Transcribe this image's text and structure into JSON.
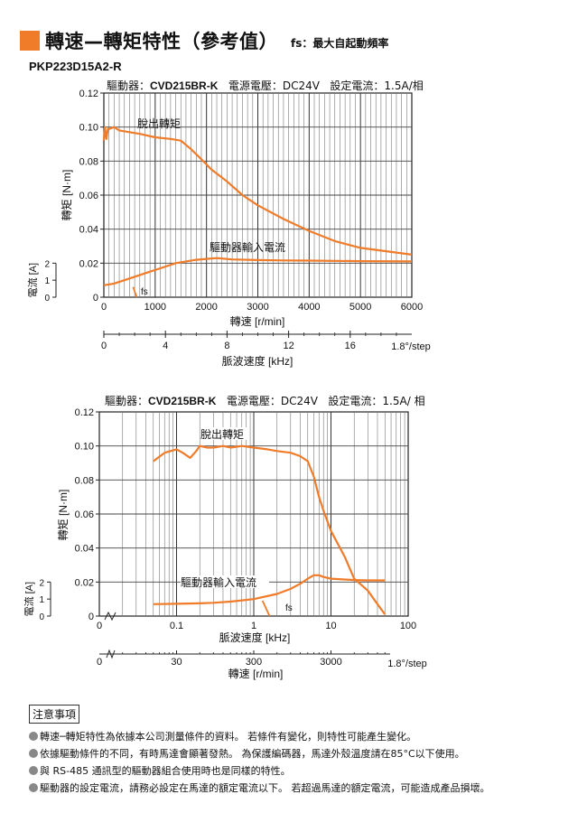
{
  "header": {
    "title": "轉速—轉矩特性（參考值）",
    "subtitle": "fs：最大自起動頻率",
    "model": "PKP223D15A2-R"
  },
  "chart_data": [
    {
      "type": "line",
      "conditions": {
        "driver_label": "驅動器：",
        "driver": "CVD215BR-K",
        "voltage_label": "電源電壓：",
        "voltage": "DC24V",
        "current_label": "設定電流：",
        "current": "1.5A/相"
      },
      "xlabel": "轉速 [r/min]",
      "xlim": [
        0,
        6000
      ],
      "xticks": [
        "0",
        "1000",
        "2000",
        "3000",
        "4000",
        "5000",
        "6000"
      ],
      "ylabel": "轉矩 [N·m]",
      "ylim": [
        0,
        0.12
      ],
      "yticks": [
        "0",
        "0.02",
        "0.04",
        "0.06",
        "0.08",
        "0.10",
        "0.12"
      ],
      "current_axis": {
        "label": "電流 [A]",
        "ticks": [
          "0",
          "1",
          "2"
        ]
      },
      "secondary_axis": {
        "label": "脈波速度 [kHz]",
        "ticks": [
          "0",
          "4",
          "8",
          "12",
          "16"
        ],
        "step": "1.8°/step"
      },
      "grid": true,
      "series": [
        {
          "name": "脫出轉矩",
          "x": [
            0,
            20,
            50,
            80,
            120,
            200,
            300,
            500,
            700,
            1000,
            1300,
            1500,
            1700,
            1900,
            2100,
            2400,
            2700,
            3000,
            3500,
            4000,
            4500,
            5000,
            5500,
            6000
          ],
          "y": [
            0.092,
            0.1,
            0.093,
            0.099,
            0.099,
            0.1,
            0.098,
            0.097,
            0.096,
            0.094,
            0.093,
            0.092,
            0.087,
            0.081,
            0.075,
            0.068,
            0.06,
            0.054,
            0.046,
            0.039,
            0.033,
            0.029,
            0.027,
            0.025
          ]
        },
        {
          "name": "驅動器輸入電流",
          "x": [
            0,
            200,
            500,
            800,
            1100,
            1400,
            1600,
            1800,
            2000,
            2200,
            2500,
            3000,
            3500,
            4000,
            5000,
            6000
          ],
          "y": [
            0.007,
            0.008,
            0.011,
            0.014,
            0.017,
            0.02,
            0.021,
            0.022,
            0.0225,
            0.023,
            0.0222,
            0.0218,
            0.0216,
            0.0215,
            0.0212,
            0.021
          ]
        },
        {
          "name": "fs",
          "x": [
            570,
            640
          ],
          "y": [
            0.006,
            0.0
          ]
        }
      ]
    },
    {
      "type": "line",
      "conditions": {
        "driver_label": "驅動器：",
        "driver": "CVD215BR-K",
        "voltage_label": "電源電壓：",
        "voltage": "DC24V",
        "current_label": "設定電流：",
        "current": "1.5A/ 相"
      },
      "xlabel": "脈波速度 [kHz]",
      "x_scale": "log",
      "xlim": [
        0.01,
        100
      ],
      "xticks": [
        "0",
        "0.1",
        "1",
        "10",
        "100"
      ],
      "ylabel": "轉矩 [N·m]",
      "ylim": [
        0,
        0.12
      ],
      "yticks": [
        "0",
        "0.02",
        "0.04",
        "0.06",
        "0.08",
        "0.10",
        "0.12"
      ],
      "current_axis": {
        "label": "電流 [A]",
        "ticks": [
          "0",
          "1",
          "2"
        ]
      },
      "secondary_axis": {
        "label": "轉速 [r/min]",
        "ticks": [
          "0",
          "30",
          "300",
          "3000"
        ],
        "step": "1.8°/step"
      },
      "grid": true,
      "series": [
        {
          "name": "脫出轉矩",
          "x": [
            0.05,
            0.07,
            0.1,
            0.12,
            0.15,
            0.18,
            0.2,
            0.25,
            0.3,
            0.4,
            0.5,
            0.7,
            1.0,
            1.5,
            2,
            3,
            4,
            5,
            6,
            7,
            8,
            10,
            15,
            20,
            30,
            40,
            50
          ],
          "y": [
            0.091,
            0.096,
            0.098,
            0.096,
            0.093,
            0.097,
            0.1,
            0.099,
            0.099,
            0.1,
            0.099,
            0.1,
            0.099,
            0.098,
            0.097,
            0.096,
            0.094,
            0.091,
            0.082,
            0.07,
            0.062,
            0.05,
            0.035,
            0.022,
            0.015,
            0.007,
            0.001
          ]
        },
        {
          "name": "驅動器輸入電流",
          "x": [
            0.05,
            0.1,
            0.2,
            0.3,
            0.5,
            1,
            2,
            3,
            4,
            5,
            6,
            7,
            8,
            10,
            15,
            20,
            30,
            50
          ],
          "y": [
            0.007,
            0.0072,
            0.0075,
            0.0078,
            0.0085,
            0.01,
            0.013,
            0.016,
            0.019,
            0.022,
            0.024,
            0.024,
            0.023,
            0.022,
            0.0215,
            0.0212,
            0.021,
            0.021
          ]
        },
        {
          "name": "fs",
          "x": [
            1.3,
            1.6
          ],
          "y": [
            0.009,
            0.0
          ]
        }
      ]
    }
  ],
  "notes": {
    "title": "注意事項",
    "items": [
      "轉速─轉矩特性為依據本公司測量條件的資料。 若條件有變化，則特性可能產生變化。",
      "依據驅動條件的不同，有時馬達會顯著發熱。 為保護編碼器，馬達外殼溫度請在85°C以下使用。",
      "與 RS-485 通訊型的驅動器組合使用時也是同樣的特性。",
      "驅動器的設定電流，請務必設定在馬達的額定電流以下。 若超過馬達的額定電流，可能造成產品損壞。"
    ]
  },
  "colors": {
    "accent": "#f07b28",
    "curve": "#f07b28",
    "grid": "#444444"
  }
}
